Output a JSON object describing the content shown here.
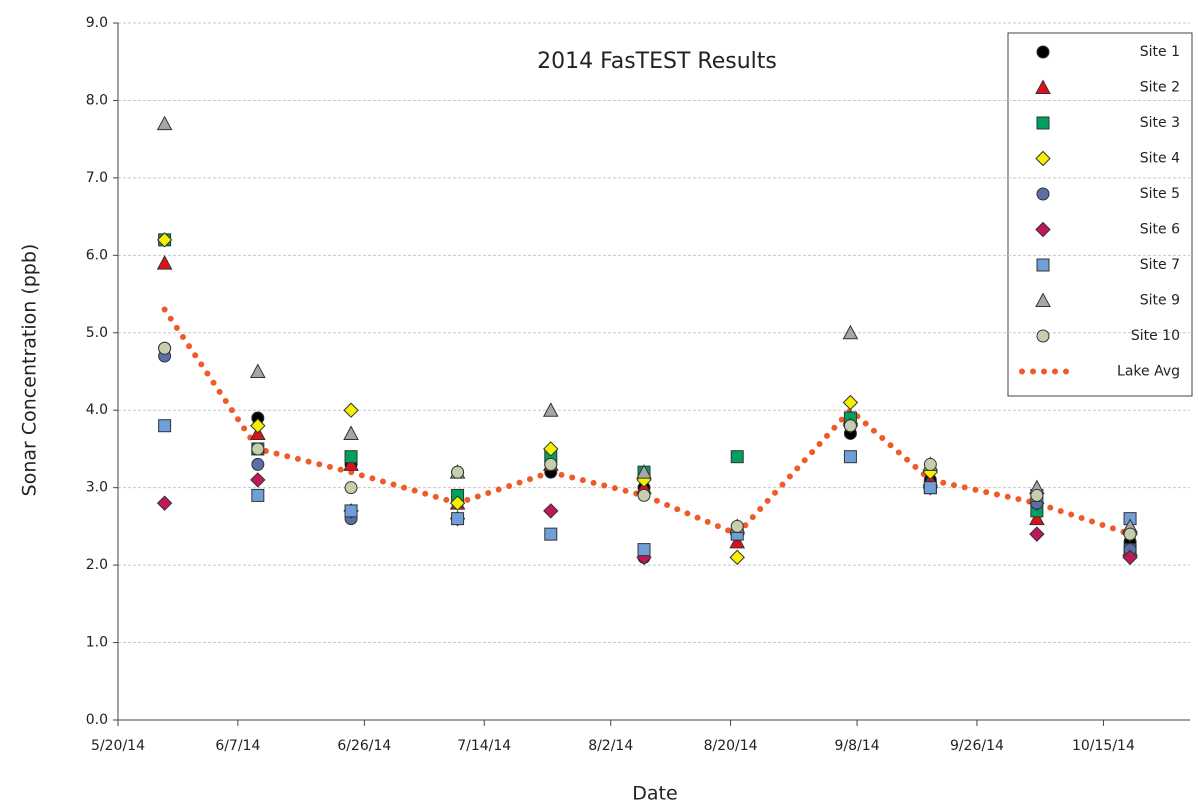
{
  "chart_data": {
    "type": "scatter",
    "title": "2014 FasTEST Results",
    "x_label": "Date",
    "y_label": "Sonar Concentration (ppb)",
    "x": [
      "2014-05-27",
      "2014-06-10",
      "2014-06-24",
      "2014-07-10",
      "2014-07-24",
      "2014-08-07",
      "2014-08-21",
      "2014-09-07",
      "2014-09-19",
      "2014-10-05",
      "2014-10-19"
    ],
    "series": [
      {
        "name": "Site 1",
        "color": "#000000",
        "marker": "circle",
        "values": [
          4.8,
          3.9,
          3.3,
          3.2,
          3.2,
          3.0,
          2.4,
          3.7,
          3.1,
          2.8,
          2.3
        ]
      },
      {
        "name": "Site 2",
        "color": "#e0101a",
        "marker": "triangle",
        "values": [
          5.9,
          3.7,
          3.3,
          2.8,
          3.3,
          3.0,
          2.3,
          3.9,
          3.1,
          2.6,
          2.2
        ]
      },
      {
        "name": "Site 3",
        "color": "#00a060",
        "marker": "square",
        "values": [
          6.2,
          3.5,
          3.4,
          2.9,
          3.4,
          3.2,
          3.4,
          3.9,
          3.0,
          2.7,
          2.2
        ]
      },
      {
        "name": "Site 4",
        "color": "#f4f000",
        "marker": "diamond",
        "values": [
          6.2,
          3.8,
          4.0,
          2.8,
          3.5,
          3.1,
          2.1,
          4.1,
          3.2,
          2.8,
          2.4
        ]
      },
      {
        "name": "Site 5",
        "color": "#5a6fa8",
        "marker": "circle",
        "values": [
          4.7,
          3.3,
          2.6,
          2.6,
          3.3,
          2.1,
          2.4,
          3.8,
          3.0,
          2.8,
          2.2
        ]
      },
      {
        "name": "Site 6",
        "color": "#c0185a",
        "marker": "diamond",
        "values": [
          2.8,
          3.1,
          2.7,
          2.6,
          2.7,
          2.1,
          2.4,
          3.8,
          3.0,
          2.4,
          2.1
        ]
      },
      {
        "name": "Site 7",
        "color": "#6f9fd8",
        "marker": "square",
        "values": [
          3.8,
          2.9,
          2.7,
          2.6,
          2.4,
          2.2,
          2.4,
          3.4,
          3.0,
          2.9,
          2.6
        ]
      },
      {
        "name": "Site 9",
        "color": "#a6a6a6",
        "marker": "triangle",
        "values": [
          7.7,
          4.5,
          3.7,
          3.2,
          4.0,
          3.2,
          2.5,
          5.0,
          3.3,
          3.0,
          2.5
        ]
      },
      {
        "name": "Site 10",
        "color": "#c4d0ac",
        "marker": "circle",
        "values": [
          4.8,
          3.5,
          3.0,
          3.2,
          3.3,
          2.9,
          2.5,
          3.8,
          3.3,
          2.9,
          2.4
        ]
      },
      {
        "name": "Lake Avg",
        "color": "#f05a28",
        "marker": "dotted-line",
        "values": [
          5.3,
          3.5,
          3.2,
          2.8,
          3.2,
          2.9,
          2.4,
          4.0,
          3.1,
          2.8,
          2.4
        ]
      }
    ],
    "xlim": [
      "2014-05-20",
      "2014-10-28"
    ],
    "xticks": [
      {
        "value": "2014-05-20",
        "label": "5/20/14"
      },
      {
        "value": "2014-06-07",
        "label": "6/7/14"
      },
      {
        "value": "2014-06-26",
        "label": "6/26/14"
      },
      {
        "value": "2014-07-14",
        "label": "7/14/14"
      },
      {
        "value": "2014-08-02",
        "label": "8/2/14"
      },
      {
        "value": "2014-08-20",
        "label": "8/20/14"
      },
      {
        "value": "2014-09-08",
        "label": "9/8/14"
      },
      {
        "value": "2014-09-26",
        "label": "9/26/14"
      },
      {
        "value": "2014-10-15",
        "label": "10/15/14"
      }
    ],
    "ylim": [
      0,
      9
    ],
    "yticks": [
      {
        "value": 0,
        "label": "0.0"
      },
      {
        "value": 1,
        "label": "1.0"
      },
      {
        "value": 2,
        "label": "2.0"
      },
      {
        "value": 3,
        "label": "3.0"
      },
      {
        "value": 4,
        "label": "4.0"
      },
      {
        "value": 5,
        "label": "5.0"
      },
      {
        "value": 6,
        "label": "6.0"
      },
      {
        "value": 7,
        "label": "7.0"
      },
      {
        "value": 8,
        "label": "8.0"
      },
      {
        "value": 9,
        "label": "9.0"
      }
    ],
    "grid": true,
    "legend": "top-right"
  }
}
